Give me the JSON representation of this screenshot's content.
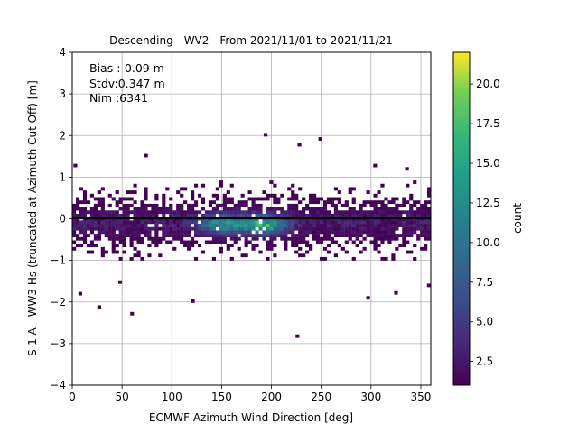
{
  "chart_data": {
    "type": "heatmap",
    "title": "Descending - WV2 - From 2021/11/01 to 2021/11/21",
    "xlabel": "ECMWF Azimuth Wind Direction [deg]",
    "ylabel": "S-1 A - WW3 Hs (truncated at Azimuth Cut Off) [m]",
    "xlim": [
      0,
      360
    ],
    "ylim": [
      -4,
      4
    ],
    "xticks": [
      "0",
      "50",
      "100",
      "150",
      "200",
      "250",
      "300",
      "350"
    ],
    "yticks": [
      "−4",
      "−3",
      "−2",
      "−1",
      "0",
      "1",
      "2",
      "3",
      "4"
    ],
    "grid": true,
    "zero_line_y": 0,
    "annotations": [
      "Bias :-0.09 m",
      "Stdv:0.347 m",
      "Nim :6341"
    ],
    "colorbar": {
      "label": "count",
      "colormap": "viridis",
      "min": 1,
      "max": 22,
      "ticks": [
        "2.5",
        "5.0",
        "7.5",
        "10.0",
        "12.5",
        "15.0",
        "17.5",
        "20.0"
      ],
      "tick_values": [
        2.5,
        5.0,
        7.5,
        10.0,
        12.5,
        15.0,
        17.5,
        20.0
      ]
    },
    "bin_size": {
      "x": 3.6,
      "y": 0.08
    },
    "core_band": {
      "x_range": [
        0,
        360
      ],
      "y_range": [
        -1.0,
        0.9
      ]
    },
    "hotspots": [
      {
        "x": 150,
        "y": -0.12,
        "max_count": 16
      },
      {
        "x": 192,
        "y": -0.14,
        "max_count": 19
      }
    ],
    "outliers": [
      {
        "x": 3,
        "y": 1.28
      },
      {
        "x": 194,
        "y": 2.02
      },
      {
        "x": 228,
        "y": 1.78
      },
      {
        "x": 249,
        "y": 1.92
      },
      {
        "x": 74,
        "y": 1.52
      },
      {
        "x": 304,
        "y": 1.28
      },
      {
        "x": 336,
        "y": 1.2
      },
      {
        "x": 60,
        "y": -2.28
      },
      {
        "x": 27,
        "y": -2.12
      },
      {
        "x": 121,
        "y": -1.98
      },
      {
        "x": 226,
        "y": -2.82
      },
      {
        "x": 8,
        "y": -1.8
      },
      {
        "x": 48,
        "y": -1.52
      },
      {
        "x": 325,
        "y": -1.78
      },
      {
        "x": 297,
        "y": -1.9
      },
      {
        "x": 358,
        "y": -1.6
      }
    ]
  }
}
